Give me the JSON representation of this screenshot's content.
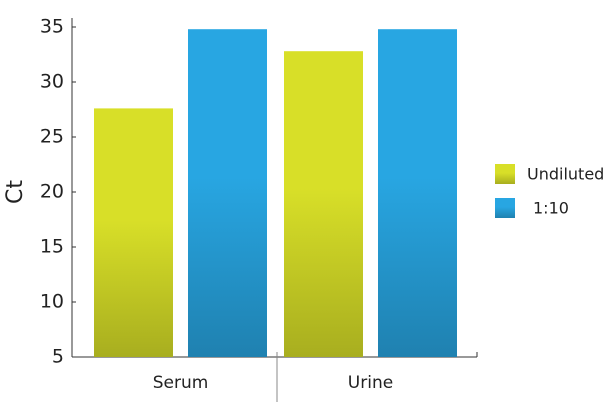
{
  "chart_data": {
    "type": "bar",
    "y_label": "Ct",
    "categories": [
      "Serum",
      "Urine"
    ],
    "series": [
      {
        "name": "Undiluted",
        "color": "#d8df28",
        "values": [
          27.6,
          32.8
        ]
      },
      {
        "name": "1:10",
        "color": "#28a6e2",
        "values": [
          34.8,
          34.8
        ]
      }
    ],
    "ylim": [
      5,
      35
    ],
    "yticks": [
      5,
      10,
      15,
      20,
      25,
      30,
      35
    ],
    "legend": "right"
  }
}
